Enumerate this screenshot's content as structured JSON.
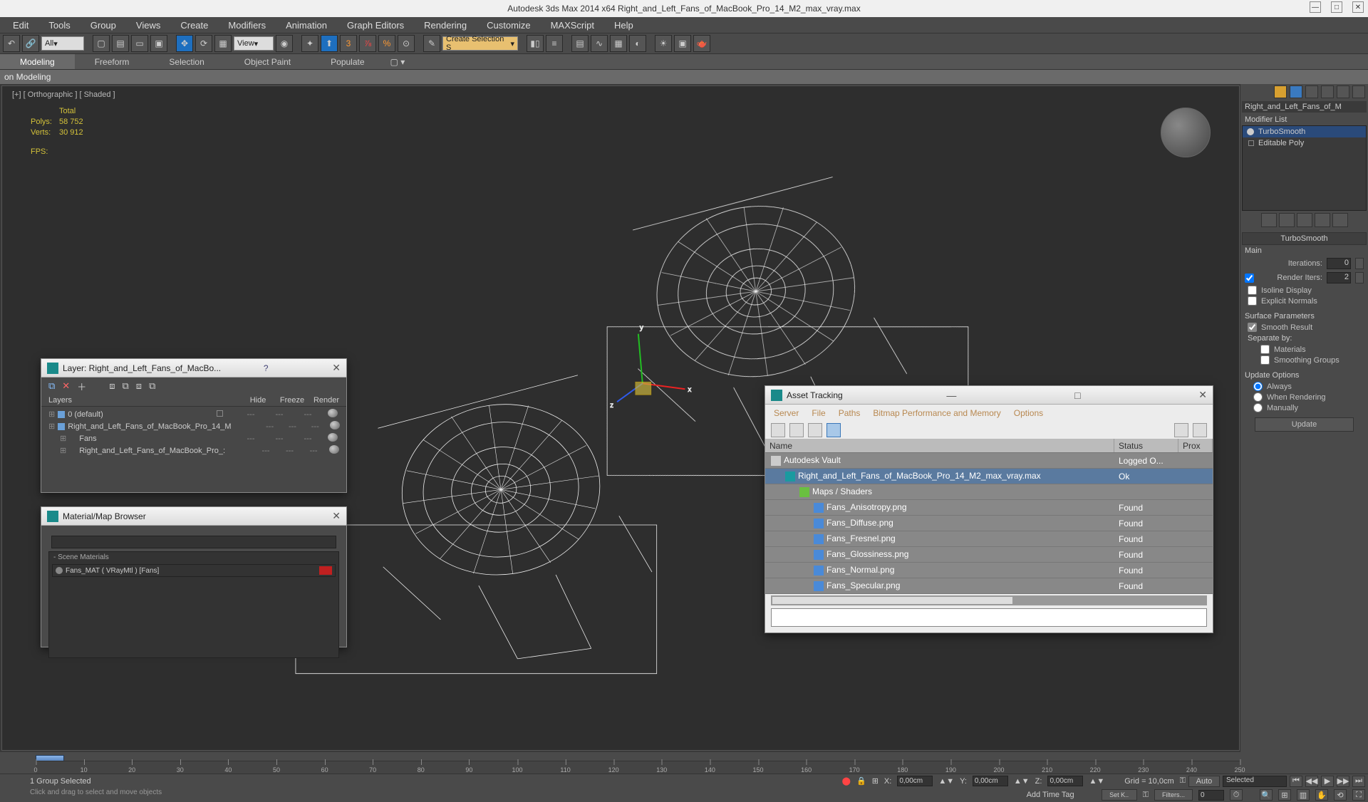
{
  "app": {
    "title": "Autodesk 3ds Max  2014 x64      Right_and_Left_Fans_of_MacBook_Pro_14_M2_max_vray.max"
  },
  "menu": [
    "Edit",
    "Tools",
    "Group",
    "Views",
    "Create",
    "Modifiers",
    "Animation",
    "Graph Editors",
    "Rendering",
    "Customize",
    "MAXScript",
    "Help"
  ],
  "toolbar": {
    "combo_all": "All",
    "combo_view": "View",
    "combo_create": "Create Selection S"
  },
  "ribbon": {
    "tabs": [
      "Modeling",
      "Freeform",
      "Selection",
      "Object Paint",
      "Populate"
    ],
    "sub": "on Modeling"
  },
  "viewport": {
    "label": "[+] [ Orthographic ] [ Shaded ]",
    "stats_hdr": "Total",
    "polys_lbl": "Polys:",
    "polys_val": "58 752",
    "verts_lbl": "Verts:",
    "verts_val": "30 912",
    "fps_lbl": "FPS:",
    "axis": {
      "x": "x",
      "y": "y",
      "z": "z"
    }
  },
  "layer_panel": {
    "title": "Layer: Right_and_Left_Fans_of_MacBo...",
    "help": "?",
    "cols": {
      "layers": "Layers",
      "hide": "Hide",
      "freeze": "Freeze",
      "render": "Render"
    },
    "rows": [
      {
        "name": "0 (default)",
        "indent": 0,
        "showbox": true
      },
      {
        "name": "Right_and_Left_Fans_of_MacBook_Pro_14_M",
        "indent": 0
      },
      {
        "name": "Fans",
        "indent": 1
      },
      {
        "name": "Right_and_Left_Fans_of_MacBook_Pro_:",
        "indent": 1
      }
    ],
    "dash": "---"
  },
  "material_panel": {
    "title": "Material/Map Browser",
    "section": "- Scene Materials",
    "item": "Fans_MAT ( VRayMtl ) [Fans]"
  },
  "asset_panel": {
    "title": "Asset Tracking",
    "menu": [
      "Server",
      "File",
      "Paths",
      "Bitmap Performance and Memory",
      "Options"
    ],
    "cols": {
      "name": "Name",
      "status": "Status",
      "prox": "Prox"
    },
    "rows": [
      {
        "icon": "vault",
        "name": "Autodesk Vault",
        "status": "Logged O...",
        "indent": 0
      },
      {
        "icon": "max",
        "name": "Right_and_Left_Fans_of_MacBook_Pro_14_M2_max_vray.max",
        "status": "Ok",
        "indent": 1,
        "sel": true
      },
      {
        "icon": "folder",
        "name": "Maps / Shaders",
        "status": "",
        "indent": 2
      },
      {
        "icon": "img",
        "name": "Fans_Anisotropy.png",
        "status": "Found",
        "indent": 3
      },
      {
        "icon": "img",
        "name": "Fans_Diffuse.png",
        "status": "Found",
        "indent": 3
      },
      {
        "icon": "img",
        "name": "Fans_Fresnel.png",
        "status": "Found",
        "indent": 3
      },
      {
        "icon": "img",
        "name": "Fans_Glossiness.png",
        "status": "Found",
        "indent": 3
      },
      {
        "icon": "img",
        "name": "Fans_Normal.png",
        "status": "Found",
        "indent": 3
      },
      {
        "icon": "img",
        "name": "Fans_Specular.png",
        "status": "Found",
        "indent": 3
      }
    ]
  },
  "cmd": {
    "obj_name": "Right_and_Left_Fans_of_M",
    "mod_list_lbl": "Modifier List",
    "stack": [
      "TurboSmooth",
      "Editable Poly"
    ],
    "rollout": "TurboSmooth",
    "main": "Main",
    "iterations_lbl": "Iterations:",
    "iterations_val": "0",
    "render_iters_lbl": "Render Iters:",
    "render_iters_val": "2",
    "isoline": "Isoline Display",
    "explicit": "Explicit Normals",
    "surf_hdr": "Surface Parameters",
    "smooth_result": "Smooth Result",
    "separate": "Separate by:",
    "sep_mat": "Materials",
    "sep_sg": "Smoothing Groups",
    "update_hdr": "Update Options",
    "update_always": "Always",
    "update_render": "When Rendering",
    "update_manual": "Manually",
    "update_btn": "Update"
  },
  "timeline": {
    "ticks": [
      0,
      10,
      20,
      30,
      40,
      50,
      60,
      70,
      80,
      90,
      100,
      110,
      120,
      130,
      140,
      150,
      160,
      170,
      180,
      190,
      200,
      210,
      220,
      230,
      240,
      250
    ]
  },
  "status": {
    "selection": "1 Group Selected",
    "x_lbl": "X:",
    "x_val": "0,00cm",
    "y_lbl": "Y:",
    "y_val": "0,00cm",
    "z_lbl": "Z:",
    "z_val": "0,00cm",
    "grid": "Grid = 10,0cm",
    "auto": "Auto",
    "selected": "Selected",
    "setk": "Set K..",
    "filters": "Filters...",
    "addtag": "Add Time Tag"
  },
  "prompt": "Click and drag to select and move objects",
  "colors": {
    "bg": "#393939",
    "panel": "#4a4a4a",
    "highlight": "#1e6fbf",
    "yellow": "#d4c23a",
    "orange": "#ff9933",
    "sel_row": "#5a7a9f",
    "asset_menu": "#b88850"
  }
}
